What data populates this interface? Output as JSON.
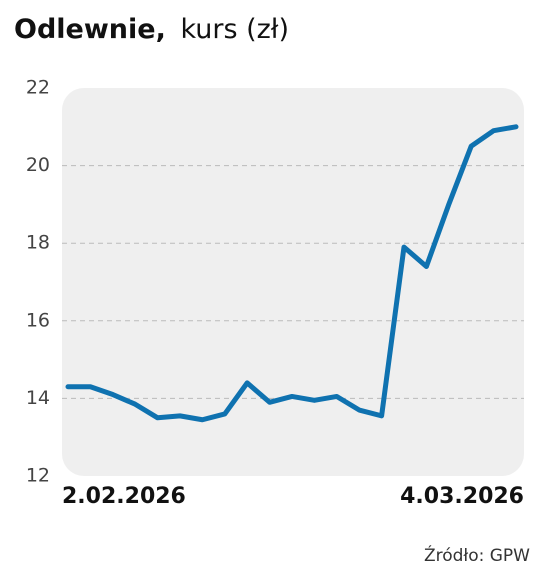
{
  "chart_data": {
    "type": "line",
    "title": "Odlewnie,",
    "subtitle": "kurs (zł)",
    "source": "Źródło: GPW",
    "categories": [
      "2.02.2026",
      null,
      null,
      null,
      null,
      null,
      null,
      null,
      null,
      null,
      null,
      null,
      null,
      null,
      null,
      null,
      null,
      null,
      null,
      null,
      "4.03.2026"
    ],
    "series": [
      {
        "name": "Odlewnie",
        "color": "#0f72b0",
        "values": [
          14.3,
          14.3,
          14.1,
          13.85,
          13.5,
          13.55,
          13.45,
          13.6,
          14.4,
          13.9,
          14.05,
          13.95,
          14.05,
          13.7,
          13.55,
          17.9,
          17.4,
          19.0,
          20.5,
          20.9,
          21.0
        ]
      }
    ],
    "ylim": [
      12,
      22
    ],
    "yticks": [
      12,
      14,
      16,
      18,
      20,
      22
    ],
    "grid": true
  }
}
